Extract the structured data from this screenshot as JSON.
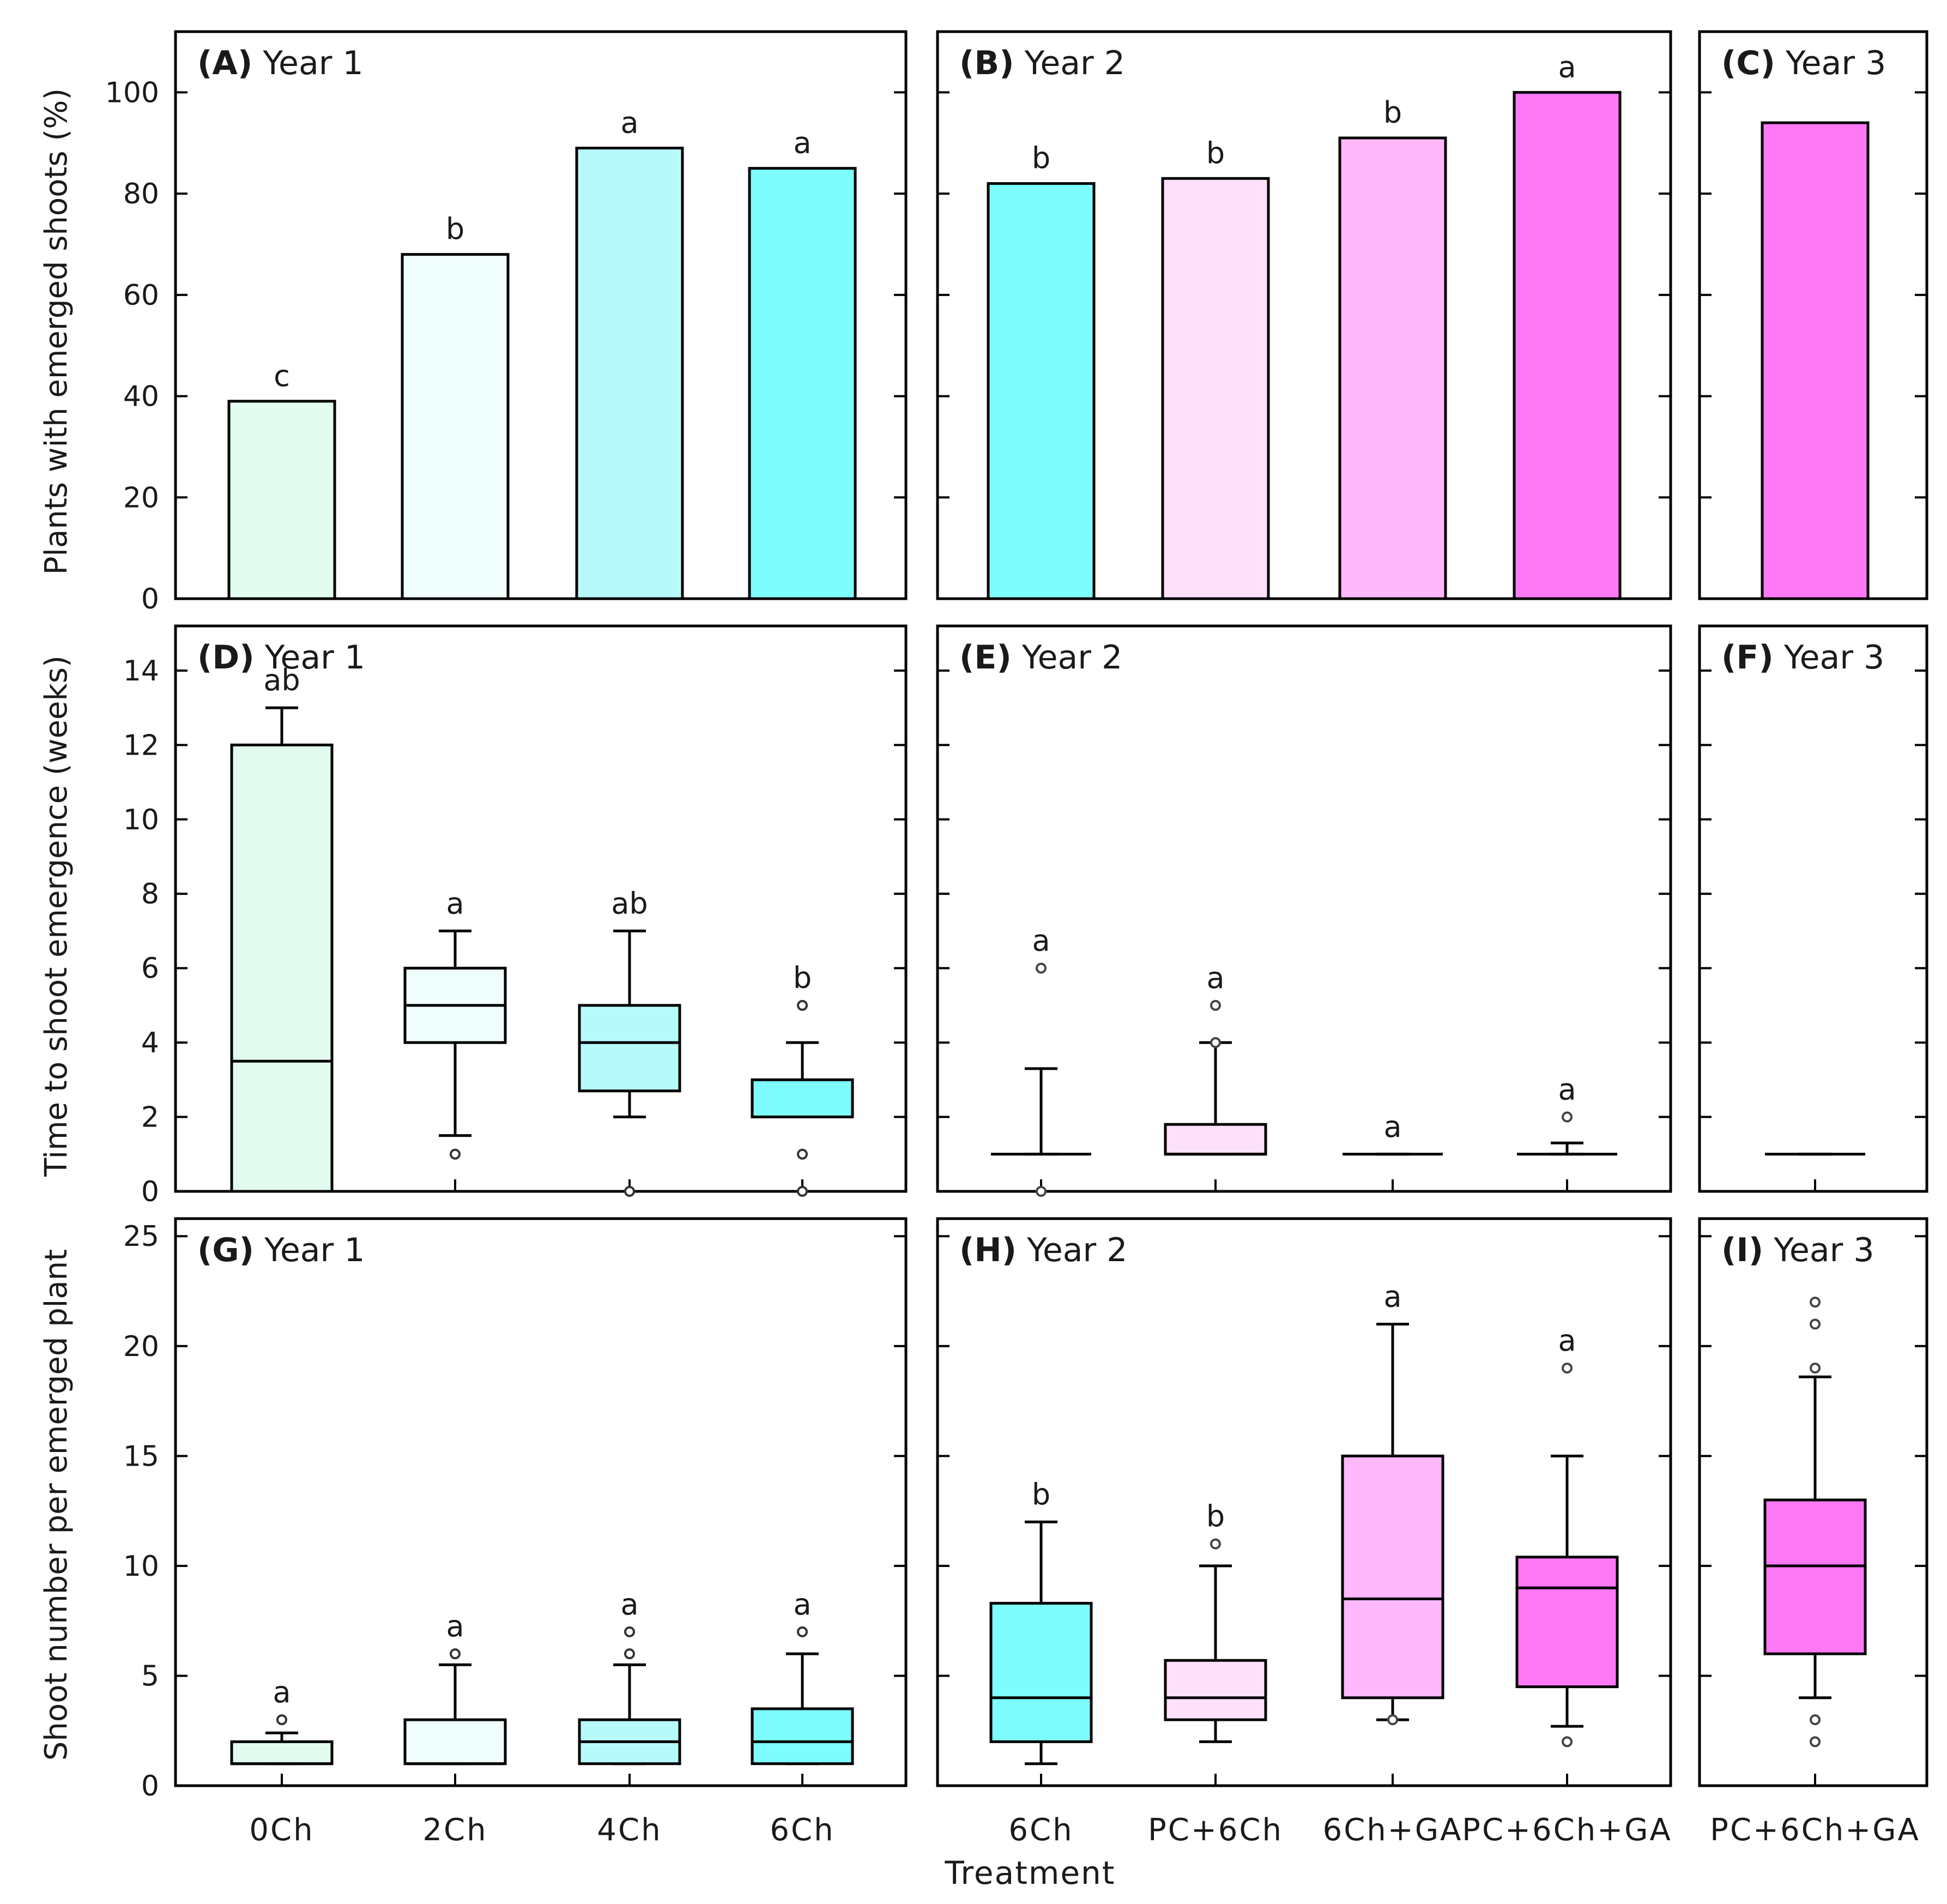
{
  "figure": {
    "x_title": "Treatment",
    "row_ylabels": [
      "Plants with emerged shoots (%)",
      "Time to shoot emergence (weeks)",
      "Shoot number per emerged plant"
    ]
  },
  "colors": {
    "0Ch": "#e2fbef",
    "2Ch": "#effdfd",
    "4Ch": "#b8fafa",
    "6Ch": "#7dfdfd",
    "PC+6Ch": "#ffe0fb",
    "6Ch+GA": "#ffb8fb",
    "PC+6Ch+GA": "#ff78f6"
  },
  "chart_data": [
    {
      "id": "A",
      "panel_label": "(A)",
      "panel_title": "Year 1",
      "type": "bar",
      "row": 0,
      "col": 0,
      "ylabel": "Plants with emerged shoots (%)",
      "ylim": [
        0,
        112
      ],
      "yticks": [
        0,
        20,
        40,
        60,
        80,
        100
      ],
      "categories": [
        "0Ch",
        "2Ch",
        "4Ch",
        "6Ch"
      ],
      "values": [
        39,
        68,
        89,
        85
      ],
      "letters": [
        "c",
        "b",
        "a",
        "a"
      ]
    },
    {
      "id": "B",
      "panel_label": "(B)",
      "panel_title": "Year 2",
      "type": "bar",
      "row": 0,
      "col": 1,
      "ylim": [
        0,
        112
      ],
      "yticks": [
        0,
        20,
        40,
        60,
        80,
        100
      ],
      "categories": [
        "6Ch",
        "PC+6Ch",
        "6Ch+GA",
        "PC+6Ch+GA"
      ],
      "values": [
        82,
        83,
        91,
        100
      ],
      "letters": [
        "b",
        "b",
        "b",
        "a"
      ]
    },
    {
      "id": "C",
      "panel_label": "(C)",
      "panel_title": "Year 3",
      "type": "bar",
      "row": 0,
      "col": 2,
      "ylim": [
        0,
        112
      ],
      "yticks": [
        0,
        20,
        40,
        60,
        80,
        100
      ],
      "categories": [
        "PC+6Ch+GA"
      ],
      "values": [
        94
      ],
      "letters": [
        ""
      ]
    },
    {
      "id": "D",
      "panel_label": "(D)",
      "panel_title": "Year 1",
      "type": "box",
      "row": 1,
      "col": 0,
      "ylabel": "Time to shoot emergence (weeks)",
      "ylim": [
        0,
        15.2
      ],
      "yticks": [
        0,
        2,
        4,
        6,
        8,
        10,
        12,
        14
      ],
      "categories": [
        "0Ch",
        "2Ch",
        "4Ch",
        "6Ch"
      ],
      "boxes": [
        {
          "q1": 0,
          "median": 3.5,
          "q3": 12,
          "wlow": 0,
          "whigh": 13,
          "outliers": []
        },
        {
          "q1": 4,
          "median": 5,
          "q3": 6,
          "wlow": 1.5,
          "whigh": 7,
          "outliers": [
            1
          ]
        },
        {
          "q1": 2.7,
          "median": 4,
          "q3": 5,
          "wlow": 2,
          "whigh": 7,
          "outliers": [
            0
          ]
        },
        {
          "q1": 2,
          "median": 2,
          "q3": 3,
          "wlow": 2,
          "whigh": 4,
          "outliers": [
            5,
            1,
            0
          ]
        }
      ],
      "letters": [
        "ab",
        "a",
        "ab",
        "b"
      ]
    },
    {
      "id": "E",
      "panel_label": "(E)",
      "panel_title": "Year 2",
      "type": "box",
      "row": 1,
      "col": 1,
      "ylim": [
        0,
        15.2
      ],
      "yticks": [
        0,
        2,
        4,
        6,
        8,
        10,
        12,
        14
      ],
      "categories": [
        "6Ch",
        "PC+6Ch",
        "6Ch+GA",
        "PC+6Ch+GA"
      ],
      "boxes": [
        {
          "q1": 1,
          "median": 1,
          "q3": 1,
          "wlow": 1,
          "whigh": 3.3,
          "outliers": [
            6,
            0
          ]
        },
        {
          "q1": 1,
          "median": 1,
          "q3": 1.8,
          "wlow": 1,
          "whigh": 4,
          "outliers": [
            5,
            4
          ]
        },
        {
          "q1": 1,
          "median": 1,
          "q3": 1,
          "wlow": 1,
          "whigh": 1,
          "outliers": []
        },
        {
          "q1": 1,
          "median": 1,
          "q3": 1,
          "wlow": 1,
          "whigh": 1.3,
          "outliers": [
            2
          ]
        }
      ],
      "letters": [
        "a",
        "a",
        "a",
        "a"
      ]
    },
    {
      "id": "F",
      "panel_label": "(F)",
      "panel_title": "Year 3",
      "type": "box",
      "row": 1,
      "col": 2,
      "ylim": [
        0,
        15.2
      ],
      "yticks": [
        0,
        2,
        4,
        6,
        8,
        10,
        12,
        14
      ],
      "categories": [
        "PC+6Ch+GA"
      ],
      "boxes": [
        {
          "q1": 1,
          "median": 1,
          "q3": 1,
          "wlow": 1,
          "whigh": 1,
          "outliers": []
        }
      ],
      "letters": [
        ""
      ]
    },
    {
      "id": "G",
      "panel_label": "(G)",
      "panel_title": "Year 1",
      "type": "box",
      "row": 2,
      "col": 0,
      "ylabel": "Shoot number per emerged plant",
      "ylim": [
        0,
        25.8
      ],
      "yticks": [
        0,
        5,
        10,
        15,
        20,
        25
      ],
      "categories": [
        "0Ch",
        "2Ch",
        "4Ch",
        "6Ch"
      ],
      "boxes": [
        {
          "q1": 1,
          "median": 1,
          "q3": 2,
          "wlow": 1,
          "whigh": 2.4,
          "outliers": [
            3
          ]
        },
        {
          "q1": 1,
          "median": 1,
          "q3": 3,
          "wlow": 1,
          "whigh": 5.5,
          "outliers": [
            6
          ]
        },
        {
          "q1": 1,
          "median": 2,
          "q3": 3,
          "wlow": 1,
          "whigh": 5.5,
          "outliers": [
            6,
            7
          ]
        },
        {
          "q1": 1,
          "median": 2,
          "q3": 3.5,
          "wlow": 1,
          "whigh": 6,
          "outliers": [
            7
          ]
        }
      ],
      "letters": [
        "a",
        "a",
        "a",
        "a"
      ]
    },
    {
      "id": "H",
      "panel_label": "(H)",
      "panel_title": "Year 2",
      "type": "box",
      "row": 2,
      "col": 1,
      "ylim": [
        0,
        25.8
      ],
      "yticks": [
        0,
        5,
        10,
        15,
        20,
        25
      ],
      "categories": [
        "6Ch",
        "PC+6Ch",
        "6Ch+GA",
        "PC+6Ch+GA"
      ],
      "boxes": [
        {
          "q1": 2,
          "median": 4,
          "q3": 8.3,
          "wlow": 1,
          "whigh": 12,
          "outliers": []
        },
        {
          "q1": 3,
          "median": 4,
          "q3": 5.7,
          "wlow": 2,
          "whigh": 10,
          "outliers": [
            11
          ]
        },
        {
          "q1": 4,
          "median": 8.5,
          "q3": 15,
          "wlow": 3,
          "whigh": 21,
          "outliers": [
            3
          ]
        },
        {
          "q1": 4.5,
          "median": 9,
          "q3": 10.4,
          "wlow": 2.7,
          "whigh": 15,
          "outliers": [
            19,
            2
          ]
        }
      ],
      "letters": [
        "b",
        "b",
        "a",
        "a"
      ]
    },
    {
      "id": "I",
      "panel_label": "(I)",
      "panel_title": "Year 3",
      "type": "box",
      "row": 2,
      "col": 2,
      "ylim": [
        0,
        25.8
      ],
      "yticks": [
        0,
        5,
        10,
        15,
        20,
        25
      ],
      "categories": [
        "PC+6Ch+GA"
      ],
      "boxes": [
        {
          "q1": 6,
          "median": 10,
          "q3": 13,
          "wlow": 4,
          "whigh": 18.6,
          "outliers": [
            22,
            21,
            19,
            3,
            2
          ]
        }
      ],
      "letters": [
        ""
      ]
    }
  ]
}
